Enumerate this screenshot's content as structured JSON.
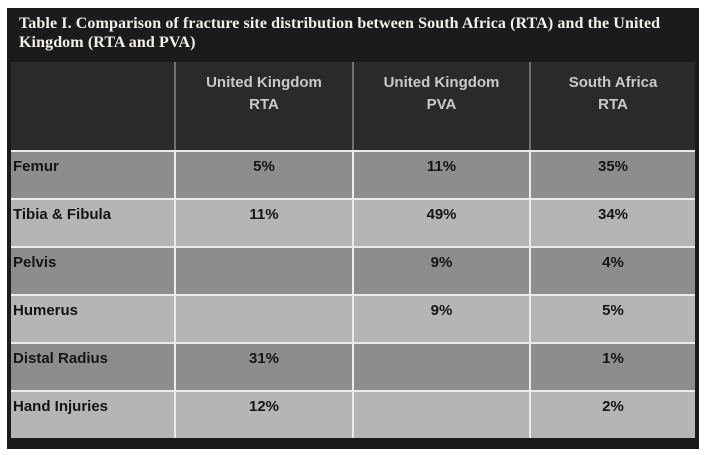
{
  "table": {
    "title": "Table I. Comparison of fracture site distribution between South Africa (RTA) and the United Kingdom (RTA and PVA)",
    "columns": [
      {
        "line1": "United Kingdom",
        "line2": "RTA"
      },
      {
        "line1": "United Kingdom",
        "line2": "PVA"
      },
      {
        "line1": "South Africa",
        "line2": "RTA"
      }
    ],
    "rows": [
      {
        "label": "Femur",
        "values": [
          "5%",
          "11%",
          "35%"
        ]
      },
      {
        "label": "Tibia & Fibula",
        "values": [
          "11%",
          "49%",
          "34%"
        ]
      },
      {
        "label": "Pelvis",
        "values": [
          "",
          "9%",
          "4%"
        ]
      },
      {
        "label": "Humerus",
        "values": [
          "",
          "9%",
          "5%"
        ]
      },
      {
        "label": "Distal Radius",
        "values": [
          "31%",
          "",
          "1%"
        ]
      },
      {
        "label": "Hand Injuries",
        "values": [
          "12%",
          "",
          "2%"
        ]
      }
    ],
    "colors": {
      "frame_bg": "#1b1b1b",
      "header_bg": "#2a2a2a",
      "header_text": "#c9c9c9",
      "title_text": "#f3f0ea",
      "row_dark": "#8d8d8d",
      "row_light": "#b5b5b5",
      "row_text": "#151515",
      "grid_line_light": "#ececec",
      "grid_line_header": "#707070"
    }
  },
  "chart_data": {
    "type": "table",
    "title": "Table I. Comparison of fracture site distribution between South Africa (RTA) and the United Kingdom (RTA and PVA)",
    "categories": [
      "United Kingdom RTA",
      "United Kingdom PVA",
      "South Africa RTA"
    ],
    "series": [
      {
        "name": "Femur",
        "values": [
          5,
          11,
          35
        ]
      },
      {
        "name": "Tibia & Fibula",
        "values": [
          11,
          49,
          34
        ]
      },
      {
        "name": "Pelvis",
        "values": [
          null,
          9,
          4
        ]
      },
      {
        "name": "Humerus",
        "values": [
          null,
          9,
          5
        ]
      },
      {
        "name": "Distal Radius",
        "values": [
          31,
          null,
          1
        ]
      },
      {
        "name": "Hand Injuries",
        "values": [
          12,
          null,
          2
        ]
      }
    ],
    "unit": "%"
  }
}
